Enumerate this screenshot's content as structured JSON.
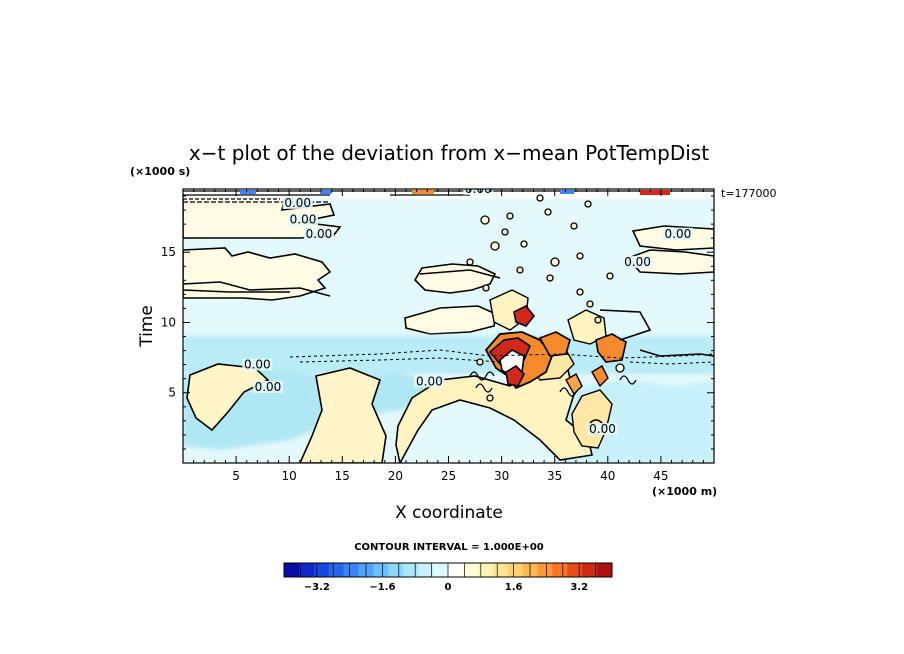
{
  "chart_data": {
    "type": "heatmap",
    "title": "x−t plot of the deviation from x−mean PotTempDist",
    "xlabel": "X coordinate",
    "ylabel": "Time",
    "x_unit": "(×1000 m)",
    "y_unit": "(×1000 s)",
    "xlim": [
      0,
      50
    ],
    "ylim": [
      0,
      19.5
    ],
    "x_ticks": [
      5,
      10,
      15,
      20,
      25,
      30,
      35,
      40,
      45
    ],
    "y_ticks": [
      5,
      10,
      15
    ],
    "x_tick_labels": [
      "5",
      "10",
      "15",
      "20",
      "25",
      "30",
      "35",
      "40",
      "45"
    ],
    "y_tick_labels": [
      "5",
      "10",
      "15"
    ],
    "annotation": "t=177000",
    "contour_interval_text": "CONTOUR INTERVAL = 1.000E+00",
    "contour_label": "0.00",
    "contour_label_positions": [
      {
        "x": 10.8,
        "y": 18.3
      },
      {
        "x": 11.3,
        "y": 17.1
      },
      {
        "x": 12.8,
        "y": 16.1
      },
      {
        "x": 46.6,
        "y": 16.1
      },
      {
        "x": 42.8,
        "y": 14.1
      },
      {
        "x": 7.0,
        "y": 6.8
      },
      {
        "x": 8.0,
        "y": 5.2
      },
      {
        "x": 23.2,
        "y": 5.6
      },
      {
        "x": 39.5,
        "y": 2.2
      },
      {
        "x": 27.8,
        "y": 19.3
      }
    ],
    "colorbar": {
      "min": -4.0,
      "max": 4.0,
      "step": 0.4,
      "tick_values": [
        -3.2,
        -1.6,
        0,
        1.6,
        3.2
      ],
      "tick_labels": [
        "−3.2",
        "−1.6",
        "0",
        "1.6",
        "3.2"
      ],
      "colors": [
        "#0b0ba8",
        "#0f28c8",
        "#1846e0",
        "#2466f0",
        "#3a86f8",
        "#52a4fb",
        "#6ec0fc",
        "#8cd6fd",
        "#aae6fe",
        "#c6f1fe",
        "#def8ff",
        "#ffffff",
        "#fffdd8",
        "#fff4b4",
        "#ffe490",
        "#ffd070",
        "#ffb852",
        "#ff9a3a",
        "#fa7426",
        "#e84c18",
        "#d02812",
        "#b01010"
      ]
    },
    "colors": {
      "background": "#ffffff",
      "light_cyan": "#e4f9fc",
      "cream": "#fffbe4",
      "cyan_band": "#b9ecf7",
      "light_yellow": "#fff3c0",
      "orange": "#f48a2c",
      "red": "#d2281a"
    }
  }
}
